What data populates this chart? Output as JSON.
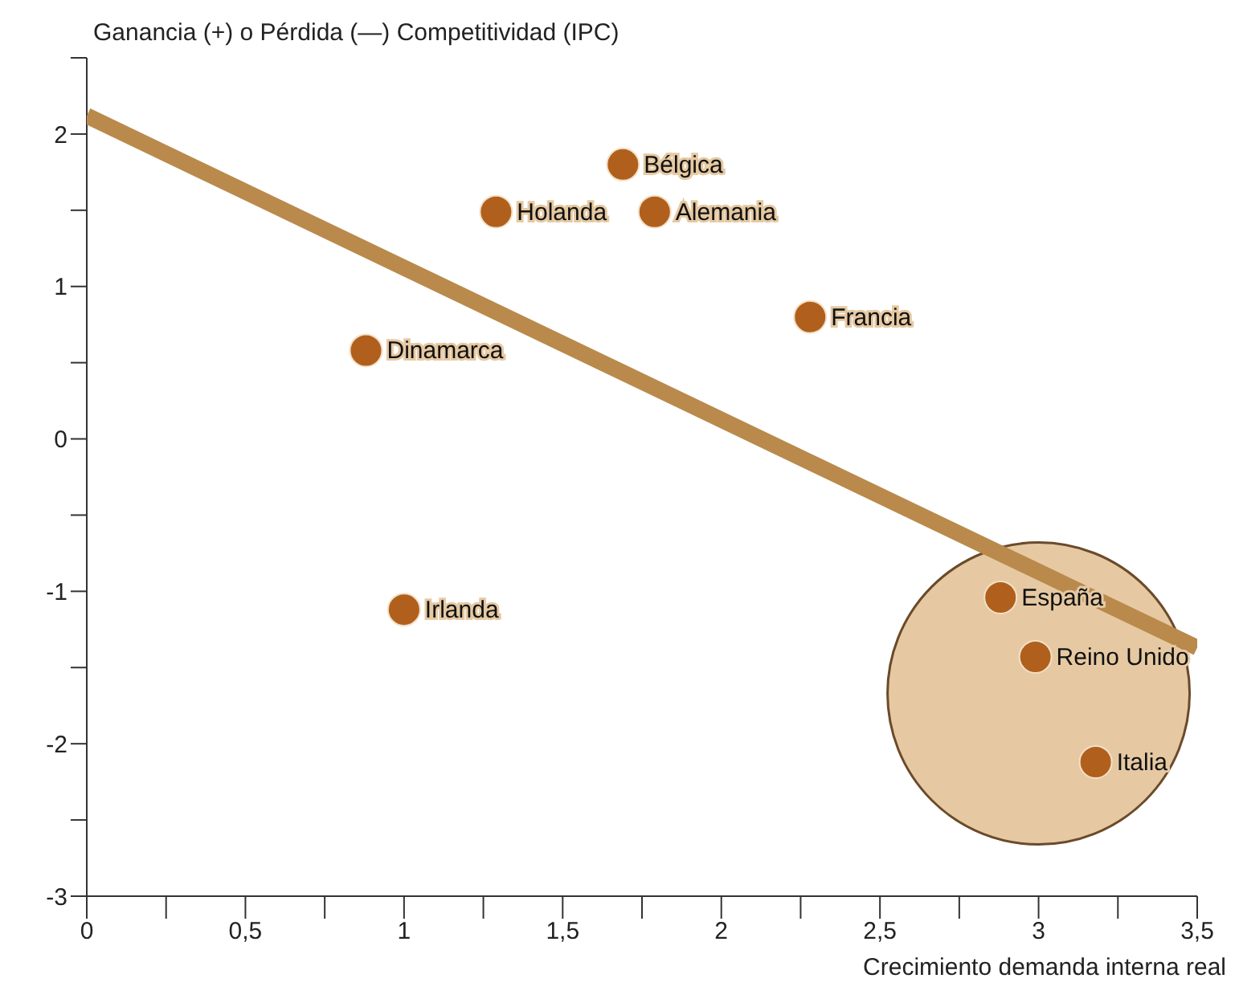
{
  "chart_data": {
    "type": "scatter",
    "ylabel": "Ganancia (+) o Pérdida (—) Competitividad (IPC)",
    "xlabel": "Crecimiento demanda interna real",
    "xlim": [
      0,
      3.5
    ],
    "ylim": [
      -3,
      2.5
    ],
    "xticks": [
      0,
      {
        "value": 0.25,
        "label": null
      },
      {
        "value": 0.5,
        "label": "0,5"
      },
      {
        "value": 0.75,
        "label": null
      },
      1,
      {
        "value": 1.25,
        "label": null
      },
      {
        "value": 1.5,
        "label": "1,5"
      },
      {
        "value": 1.75,
        "label": null
      },
      2,
      {
        "value": 2.25,
        "label": null
      },
      {
        "value": 2.5,
        "label": "2,5"
      },
      {
        "value": 2.75,
        "label": null
      },
      3,
      {
        "value": 3.25,
        "label": null
      },
      {
        "value": 3.5,
        "label": "3,5"
      }
    ],
    "yticks": [
      -3,
      {
        "value": -2.5,
        "label": null
      },
      -2,
      {
        "value": -1.5,
        "label": null
      },
      -1,
      {
        "value": -0.5,
        "label": null
      },
      0,
      {
        "value": 0.5,
        "label": null
      },
      1,
      {
        "value": 1.5,
        "label": null
      },
      2,
      {
        "value": 2.5,
        "label": null
      }
    ],
    "series": [
      {
        "type": "line",
        "color": "#b98a4c",
        "x": [
          0,
          3.5
        ],
        "values": [
          2.12,
          -1.37
        ]
      },
      {
        "marker": "circle",
        "color": "#b0601c",
        "x": [
          1.69,
          1.29,
          1.79,
          2.28,
          0.88,
          1.0,
          2.88,
          2.99,
          3.18
        ],
        "values": [
          1.8,
          1.49,
          1.49,
          0.8,
          0.58,
          -1.12,
          -1.04,
          -1.43,
          -2.12
        ]
      }
    ],
    "annotations": [
      {
        "text": "Bélgica",
        "x": 1.69,
        "y": 1.8
      },
      {
        "text": "Holanda",
        "x": 1.29,
        "y": 1.49
      },
      {
        "text": "Alemania",
        "x": 1.79,
        "y": 1.49
      },
      {
        "text": "Francia",
        "x": 2.28,
        "y": 0.8
      },
      {
        "text": "Dinamarca",
        "x": 0.88,
        "y": 0.58
      },
      {
        "text": "Irlanda",
        "x": 1.0,
        "y": -1.12
      },
      {
        "text": "España",
        "x": 2.88,
        "y": -1.04
      },
      {
        "text": "Reino Unido",
        "x": 2.99,
        "y": -1.43
      },
      {
        "text": "Italia",
        "x": 3.18,
        "y": -2.12
      }
    ]
  }
}
